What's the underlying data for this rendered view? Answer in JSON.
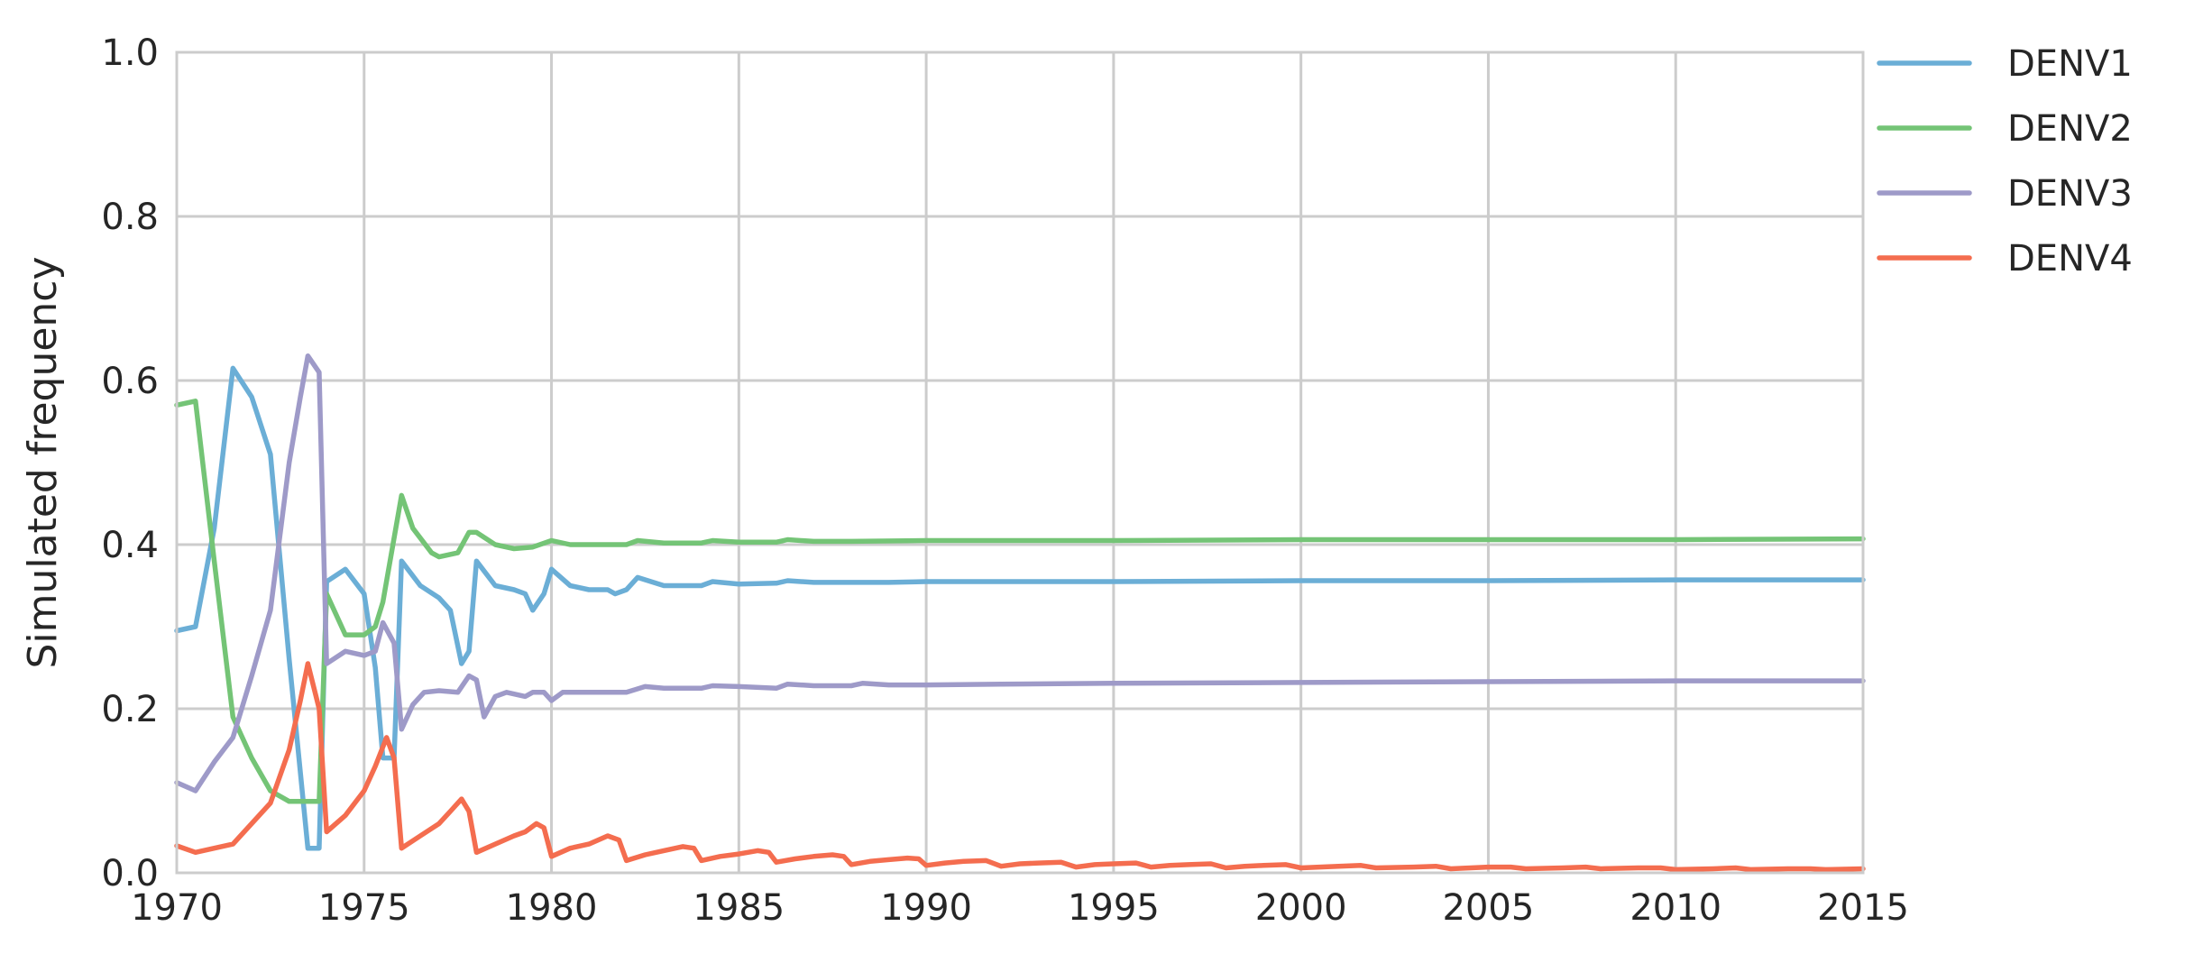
{
  "chart_data": {
    "type": "line",
    "xlabel": "",
    "ylabel": "Simulated frequency",
    "xlim": [
      1970,
      2015
    ],
    "ylim": [
      0.0,
      1.0
    ],
    "xticks": [
      "1970",
      "1975",
      "1980",
      "1985",
      "1990",
      "1995",
      "2000",
      "2005",
      "2010",
      "2015"
    ],
    "yticks": [
      "0.0",
      "0.2",
      "0.4",
      "0.6",
      "0.8",
      "1.0"
    ],
    "grid": true,
    "legend_position": "outside-right",
    "series": [
      {
        "name": "DENV1",
        "color": "#6baed6",
        "points": [
          [
            1970.0,
            0.295
          ],
          [
            1970.5,
            0.3
          ],
          [
            1971.0,
            0.42
          ],
          [
            1971.5,
            0.615
          ],
          [
            1972.0,
            0.58
          ],
          [
            1972.5,
            0.51
          ],
          [
            1973.0,
            0.26
          ],
          [
            1973.5,
            0.03
          ],
          [
            1973.8,
            0.03
          ],
          [
            1974.0,
            0.355
          ],
          [
            1974.5,
            0.37
          ],
          [
            1975.0,
            0.34
          ],
          [
            1975.3,
            0.25
          ],
          [
            1975.5,
            0.14
          ],
          [
            1975.8,
            0.14
          ],
          [
            1976.0,
            0.38
          ],
          [
            1976.5,
            0.35
          ],
          [
            1977.0,
            0.335
          ],
          [
            1977.3,
            0.32
          ],
          [
            1977.6,
            0.255
          ],
          [
            1977.8,
            0.27
          ],
          [
            1978.0,
            0.38
          ],
          [
            1978.5,
            0.35
          ],
          [
            1979.0,
            0.345
          ],
          [
            1979.3,
            0.34
          ],
          [
            1979.5,
            0.32
          ],
          [
            1979.8,
            0.34
          ],
          [
            1980.0,
            0.37
          ],
          [
            1980.5,
            0.35
          ],
          [
            1981.0,
            0.345
          ],
          [
            1981.5,
            0.345
          ],
          [
            1981.7,
            0.34
          ],
          [
            1982.0,
            0.345
          ],
          [
            1982.3,
            0.36
          ],
          [
            1983.0,
            0.35
          ],
          [
            1984.0,
            0.35
          ],
          [
            1984.3,
            0.355
          ],
          [
            1985.0,
            0.352
          ],
          [
            1986.0,
            0.353
          ],
          [
            1986.3,
            0.356
          ],
          [
            1987.0,
            0.354
          ],
          [
            1988.0,
            0.354
          ],
          [
            1989.0,
            0.354
          ],
          [
            1990.0,
            0.355
          ],
          [
            1992.0,
            0.355
          ],
          [
            1995.0,
            0.355
          ],
          [
            2000.0,
            0.356
          ],
          [
            2005.0,
            0.356
          ],
          [
            2010.0,
            0.357
          ],
          [
            2015.0,
            0.357
          ]
        ]
      },
      {
        "name": "DENV2",
        "color": "#74c476",
        "points": [
          [
            1970.0,
            0.57
          ],
          [
            1970.5,
            0.575
          ],
          [
            1971.0,
            0.38
          ],
          [
            1971.5,
            0.19
          ],
          [
            1972.0,
            0.14
          ],
          [
            1972.5,
            0.1
          ],
          [
            1973.0,
            0.087
          ],
          [
            1973.5,
            0.087
          ],
          [
            1973.8,
            0.087
          ],
          [
            1974.0,
            0.34
          ],
          [
            1974.5,
            0.29
          ],
          [
            1975.0,
            0.29
          ],
          [
            1975.3,
            0.3
          ],
          [
            1975.5,
            0.33
          ],
          [
            1976.0,
            0.46
          ],
          [
            1976.3,
            0.42
          ],
          [
            1976.8,
            0.39
          ],
          [
            1977.0,
            0.385
          ],
          [
            1977.5,
            0.39
          ],
          [
            1977.8,
            0.415
          ],
          [
            1978.0,
            0.415
          ],
          [
            1978.5,
            0.4
          ],
          [
            1979.0,
            0.395
          ],
          [
            1979.5,
            0.397
          ],
          [
            1980.0,
            0.405
          ],
          [
            1980.5,
            0.4
          ],
          [
            1981.0,
            0.4
          ],
          [
            1982.0,
            0.4
          ],
          [
            1982.3,
            0.405
          ],
          [
            1983.0,
            0.402
          ],
          [
            1984.0,
            0.402
          ],
          [
            1984.3,
            0.405
          ],
          [
            1985.0,
            0.403
          ],
          [
            1986.0,
            0.403
          ],
          [
            1986.3,
            0.406
          ],
          [
            1987.0,
            0.404
          ],
          [
            1988.0,
            0.404
          ],
          [
            1990.0,
            0.405
          ],
          [
            1992.0,
            0.405
          ],
          [
            1995.0,
            0.405
          ],
          [
            2000.0,
            0.406
          ],
          [
            2005.0,
            0.406
          ],
          [
            2010.0,
            0.406
          ],
          [
            2015.0,
            0.407
          ]
        ]
      },
      {
        "name": "DENV3",
        "color": "#9e9ac8",
        "points": [
          [
            1970.0,
            0.11
          ],
          [
            1970.5,
            0.1
          ],
          [
            1971.0,
            0.135
          ],
          [
            1971.5,
            0.165
          ],
          [
            1972.0,
            0.24
          ],
          [
            1972.5,
            0.32
          ],
          [
            1973.0,
            0.5
          ],
          [
            1973.3,
            0.58
          ],
          [
            1973.5,
            0.63
          ],
          [
            1973.8,
            0.61
          ],
          [
            1974.0,
            0.255
          ],
          [
            1974.5,
            0.27
          ],
          [
            1975.0,
            0.265
          ],
          [
            1975.3,
            0.27
          ],
          [
            1975.5,
            0.305
          ],
          [
            1975.8,
            0.28
          ],
          [
            1976.0,
            0.175
          ],
          [
            1976.3,
            0.205
          ],
          [
            1976.6,
            0.22
          ],
          [
            1977.0,
            0.222
          ],
          [
            1977.5,
            0.22
          ],
          [
            1977.8,
            0.24
          ],
          [
            1978.0,
            0.235
          ],
          [
            1978.2,
            0.19
          ],
          [
            1978.5,
            0.215
          ],
          [
            1978.8,
            0.22
          ],
          [
            1979.3,
            0.215
          ],
          [
            1979.5,
            0.22
          ],
          [
            1979.8,
            0.22
          ],
          [
            1980.0,
            0.21
          ],
          [
            1980.3,
            0.22
          ],
          [
            1981.0,
            0.22
          ],
          [
            1982.0,
            0.22
          ],
          [
            1982.5,
            0.227
          ],
          [
            1983.0,
            0.225
          ],
          [
            1984.0,
            0.225
          ],
          [
            1984.3,
            0.228
          ],
          [
            1985.0,
            0.227
          ],
          [
            1986.0,
            0.225
          ],
          [
            1986.3,
            0.23
          ],
          [
            1987.0,
            0.228
          ],
          [
            1988.0,
            0.228
          ],
          [
            1988.3,
            0.231
          ],
          [
            1989.0,
            0.229
          ],
          [
            1990.0,
            0.229
          ],
          [
            1992.0,
            0.23
          ],
          [
            1995.0,
            0.231
          ],
          [
            2000.0,
            0.232
          ],
          [
            2005.0,
            0.233
          ],
          [
            2010.0,
            0.234
          ],
          [
            2015.0,
            0.234
          ]
        ]
      },
      {
        "name": "DENV4",
        "color": "#f46d4f",
        "points": [
          [
            1970.0,
            0.033
          ],
          [
            1970.5,
            0.025
          ],
          [
            1971.0,
            0.03
          ],
          [
            1971.5,
            0.035
          ],
          [
            1972.0,
            0.06
          ],
          [
            1972.5,
            0.085
          ],
          [
            1973.0,
            0.15
          ],
          [
            1973.3,
            0.21
          ],
          [
            1973.5,
            0.255
          ],
          [
            1973.8,
            0.2
          ],
          [
            1974.0,
            0.05
          ],
          [
            1974.5,
            0.07
          ],
          [
            1975.0,
            0.1
          ],
          [
            1975.3,
            0.13
          ],
          [
            1975.6,
            0.165
          ],
          [
            1975.8,
            0.14
          ],
          [
            1976.0,
            0.03
          ],
          [
            1976.5,
            0.045
          ],
          [
            1977.0,
            0.06
          ],
          [
            1977.3,
            0.075
          ],
          [
            1977.6,
            0.09
          ],
          [
            1977.8,
            0.075
          ],
          [
            1978.0,
            0.025
          ],
          [
            1978.5,
            0.035
          ],
          [
            1979.0,
            0.045
          ],
          [
            1979.3,
            0.05
          ],
          [
            1979.6,
            0.06
          ],
          [
            1979.8,
            0.055
          ],
          [
            1980.0,
            0.02
          ],
          [
            1980.5,
            0.03
          ],
          [
            1981.0,
            0.035
          ],
          [
            1981.5,
            0.045
          ],
          [
            1981.8,
            0.04
          ],
          [
            1982.0,
            0.015
          ],
          [
            1982.5,
            0.022
          ],
          [
            1983.0,
            0.027
          ],
          [
            1983.5,
            0.032
          ],
          [
            1983.8,
            0.03
          ],
          [
            1984.0,
            0.015
          ],
          [
            1984.5,
            0.02
          ],
          [
            1985.0,
            0.023
          ],
          [
            1985.5,
            0.027
          ],
          [
            1985.8,
            0.025
          ],
          [
            1986.0,
            0.013
          ],
          [
            1986.5,
            0.017
          ],
          [
            1987.0,
            0.02
          ],
          [
            1987.5,
            0.022
          ],
          [
            1987.8,
            0.02
          ],
          [
            1988.0,
            0.01
          ],
          [
            1988.5,
            0.014
          ],
          [
            1989.0,
            0.016
          ],
          [
            1989.5,
            0.018
          ],
          [
            1989.8,
            0.017
          ],
          [
            1990.0,
            0.009
          ],
          [
            1990.5,
            0.012
          ],
          [
            1991.0,
            0.014
          ],
          [
            1991.6,
            0.015
          ],
          [
            1992.0,
            0.008
          ],
          [
            1992.5,
            0.011
          ],
          [
            1993.0,
            0.012
          ],
          [
            1993.6,
            0.013
          ],
          [
            1994.0,
            0.007
          ],
          [
            1994.5,
            0.01
          ],
          [
            1995.0,
            0.011
          ],
          [
            1995.6,
            0.012
          ],
          [
            1996.0,
            0.007
          ],
          [
            1996.5,
            0.009
          ],
          [
            1997.0,
            0.01
          ],
          [
            1997.6,
            0.011
          ],
          [
            1998.0,
            0.006
          ],
          [
            1998.5,
            0.008
          ],
          [
            1999.0,
            0.009
          ],
          [
            1999.6,
            0.01
          ],
          [
            2000.0,
            0.006
          ],
          [
            2001.0,
            0.008
          ],
          [
            2001.6,
            0.009
          ],
          [
            2002.0,
            0.006
          ],
          [
            2003.0,
            0.007
          ],
          [
            2003.6,
            0.008
          ],
          [
            2004.0,
            0.005
          ],
          [
            2005.0,
            0.007
          ],
          [
            2005.6,
            0.007
          ],
          [
            2006.0,
            0.005
          ],
          [
            2007.0,
            0.006
          ],
          [
            2007.6,
            0.007
          ],
          [
            2008.0,
            0.005
          ],
          [
            2009.0,
            0.006
          ],
          [
            2009.6,
            0.006
          ],
          [
            2010.0,
            0.004
          ],
          [
            2011.0,
            0.005
          ],
          [
            2011.6,
            0.006
          ],
          [
            2012.0,
            0.004
          ],
          [
            2013.0,
            0.005
          ],
          [
            2013.6,
            0.005
          ],
          [
            2014.0,
            0.004
          ],
          [
            2015.0,
            0.005
          ]
        ]
      }
    ]
  }
}
